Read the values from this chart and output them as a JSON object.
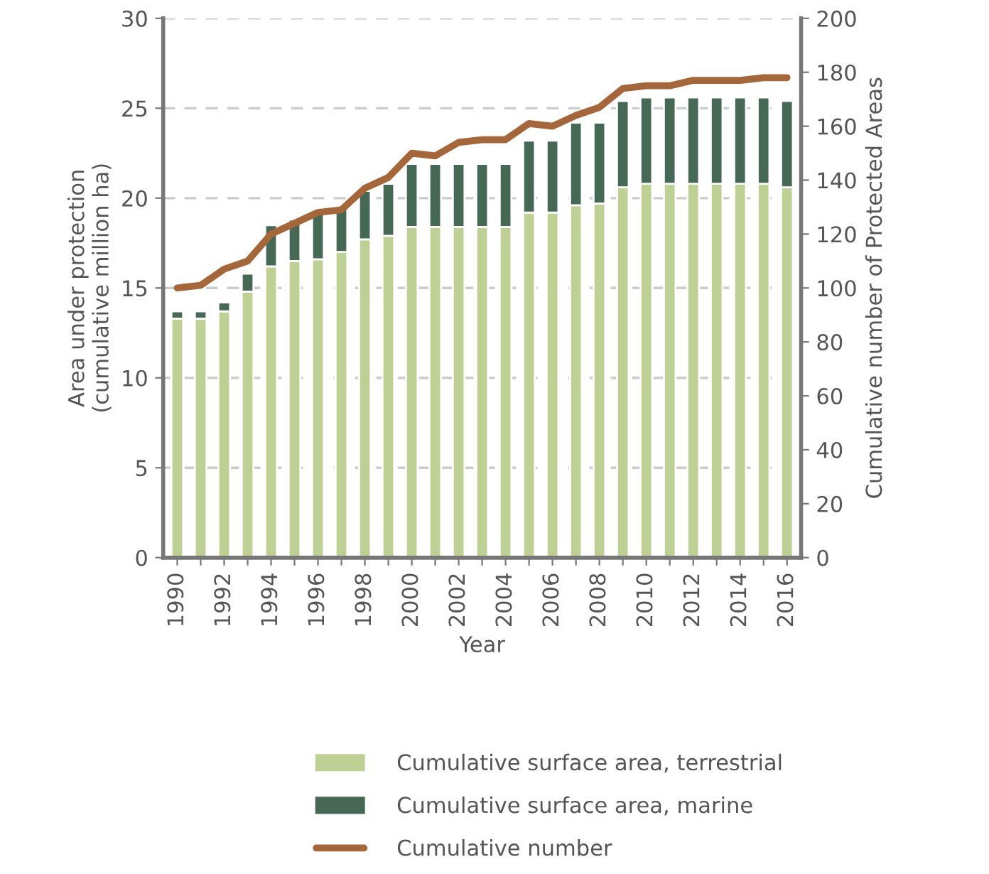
{
  "chart_data": {
    "type": "bar",
    "stacked": true,
    "xlabel": "Year",
    "ylabel": "Area under protection\n(cumulative million ha)",
    "y2label": "Cumulative number of Protected Areas",
    "categories": [
      "1990",
      null,
      "1992",
      null,
      "1994",
      null,
      "1996",
      null,
      "1998",
      null,
      "2000",
      null,
      "2002",
      null,
      "2004",
      null,
      "2006",
      null,
      "2008",
      null,
      "2010",
      null,
      "2012",
      null,
      "2014",
      null,
      "2016"
    ],
    "series": [
      {
        "name": "Cumulative surface area, terrestrial",
        "color": "#bfd095",
        "values": [
          13.3,
          13.3,
          13.7,
          14.8,
          16.2,
          16.5,
          16.6,
          17.0,
          17.7,
          17.9,
          18.4,
          18.4,
          18.4,
          18.4,
          18.4,
          19.2,
          19.2,
          19.6,
          19.7,
          20.6,
          20.8,
          20.8,
          20.8,
          20.8,
          20.8,
          20.8,
          20.6
        ]
      },
      {
        "name": "Cumulative surface area, marine",
        "color": "#456955",
        "values": [
          0.4,
          0.4,
          0.5,
          1.0,
          2.3,
          2.3,
          2.6,
          2.5,
          2.7,
          2.9,
          3.5,
          3.5,
          3.5,
          3.5,
          3.5,
          4.0,
          4.0,
          4.6,
          4.5,
          4.8,
          4.8,
          4.8,
          4.8,
          4.8,
          4.8,
          4.8,
          4.8
        ]
      },
      {
        "name": "Cumulative number",
        "type": "line",
        "axis": "y2",
        "color": "#a5663a",
        "values": [
          100,
          101,
          107,
          110,
          120,
          124,
          128,
          129,
          137,
          141,
          150,
          149,
          154,
          155,
          155,
          161,
          160,
          164,
          167,
          174,
          175,
          175,
          177,
          177,
          177,
          178,
          178
        ]
      }
    ],
    "ylim": [
      0,
      30
    ],
    "yticks": [
      0,
      5,
      10,
      15,
      20,
      25,
      30
    ],
    "y2lim": [
      0,
      200
    ],
    "y2ticks": [
      0,
      20,
      40,
      60,
      80,
      100,
      120,
      140,
      160,
      180,
      200
    ],
    "grid": "y",
    "legend": "bottom"
  }
}
